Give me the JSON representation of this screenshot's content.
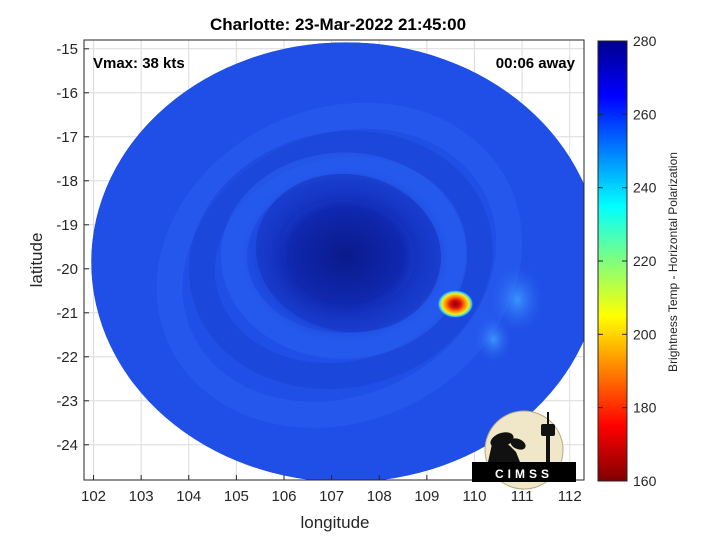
{
  "title": "Charlotte: 23-Mar-2022 21:45:00",
  "annotations": {
    "vmax": "Vmax: 38 kts",
    "time_away": "00:06 away"
  },
  "logo_text": "CIMSS",
  "chart_data": {
    "type": "heatmap",
    "title": "Charlotte: 23-Mar-2022 21:45:00",
    "xlabel": "longitude",
    "ylabel": "latitude",
    "xlim": [
      101.8,
      112.3
    ],
    "ylim": [
      -24.8,
      -14.8
    ],
    "xticks": [
      102,
      103,
      104,
      105,
      106,
      107,
      108,
      109,
      110,
      111,
      112
    ],
    "yticks": [
      -15,
      -16,
      -17,
      -18,
      -19,
      -20,
      -21,
      -22,
      -23,
      -24
    ],
    "grid": true,
    "swath": {
      "center_lon": 107.3,
      "center_lat": -19.85,
      "lon_radius": 5.35,
      "lat_radius": 5.0
    },
    "eye_center": {
      "lon": 107.3,
      "lat": -19.7
    },
    "cold_spot": {
      "lon": 109.6,
      "lat": -20.8,
      "min_temp": 175
    },
    "colorbar": {
      "label": "Brightness Temp - Horizontal Polarization",
      "min": 160,
      "max": 280,
      "ticks": [
        160,
        180,
        200,
        220,
        240,
        260,
        280
      ],
      "colormap": "jet"
    },
    "colors": {
      "background_field": "#1f4fe6",
      "inner_dark": "#10209c",
      "warm_bands": "#2d6cff",
      "cold_core": "#c81e0a"
    }
  }
}
